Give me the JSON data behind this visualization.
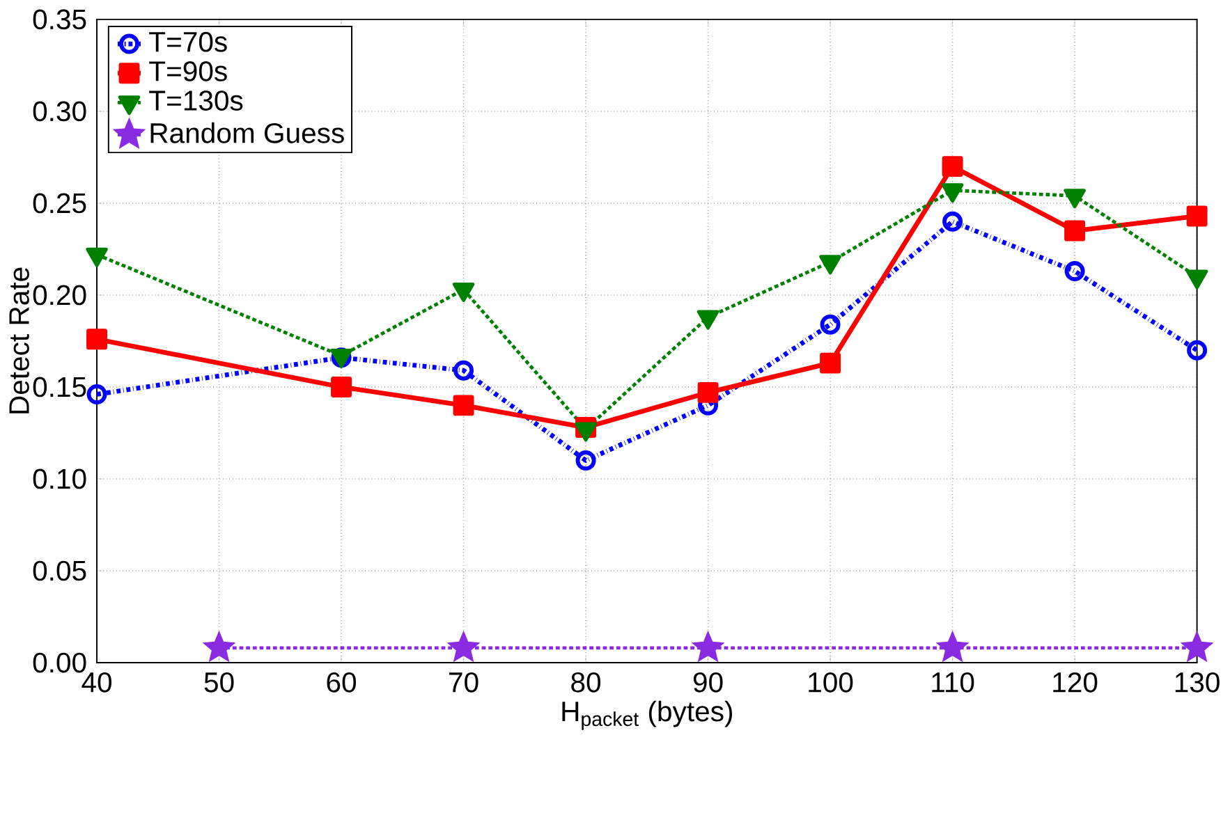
{
  "chart_data": {
    "type": "line",
    "xlabel": "H$_{packet}$ (bytes)",
    "ylabel": "Detect Rate",
    "x": [
      40,
      60,
      70,
      80,
      90,
      100,
      110,
      120,
      130
    ],
    "series": [
      {
        "name": "T=70s",
        "color": "#0000ff",
        "marker": "circle",
        "line_style": "dashed",
        "values": [
          0.146,
          0.166,
          0.159,
          0.11,
          0.14,
          0.184,
          0.24,
          0.213,
          0.17
        ]
      },
      {
        "name": "T=90s",
        "color": "#ff0000",
        "marker": "square",
        "line_style": "solid",
        "values": [
          0.176,
          0.15,
          0.14,
          0.128,
          0.147,
          0.163,
          0.27,
          0.235,
          0.243
        ]
      },
      {
        "name": "T=130s",
        "color": "#008000",
        "marker": "triangle",
        "line_style": "dotted",
        "values": [
          0.222,
          0.167,
          0.203,
          0.127,
          0.188,
          0.218,
          0.257,
          0.254,
          0.21
        ]
      },
      {
        "name": "Random Guess",
        "color": "#8a2be2",
        "marker": "star",
        "line_style": "dotted",
        "x": [
          50,
          70,
          90,
          110,
          130
        ],
        "values": [
          0.008,
          0.008,
          0.008,
          0.008,
          0.008
        ]
      }
    ],
    "xlim": [
      40,
      130
    ],
    "ylim": [
      0,
      0.35
    ],
    "xticks": [
      40,
      50,
      60,
      70,
      80,
      90,
      100,
      110,
      120,
      130
    ],
    "yticks": [
      {
        "value": 0,
        "label": "0.00"
      },
      {
        "value": 0.05,
        "label": "0.05"
      },
      {
        "value": 0.1,
        "label": "0.10"
      },
      {
        "value": 0.15,
        "label": "0.15"
      },
      {
        "value": 0.2,
        "label": "0.20"
      },
      {
        "value": 0.25,
        "label": "0.25"
      },
      {
        "value": 0.3,
        "label": "0.30"
      },
      {
        "value": 0.35,
        "label": "0.35"
      }
    ],
    "grid": true,
    "legend": "top left"
  }
}
